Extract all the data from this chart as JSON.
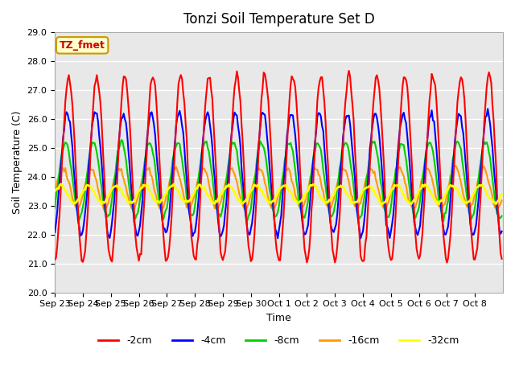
{
  "title": "Tonzi Soil Temperature Set D",
  "xlabel": "Time",
  "ylabel": "Soil Temperature (C)",
  "ylim": [
    20.0,
    29.0
  ],
  "yticks": [
    20.0,
    21.0,
    22.0,
    23.0,
    24.0,
    25.0,
    26.0,
    27.0,
    28.0,
    29.0
  ],
  "xtick_labels": [
    "Sep 23",
    "Sep 24",
    "Sep 25",
    "Sep 26",
    "Sep 27",
    "Sep 28",
    "Sep 29",
    "Sep 30",
    "Oct 1",
    "Oct 2",
    "Oct 3",
    "Oct 4",
    "Oct 5",
    "Oct 6",
    "Oct 7",
    "Oct 8"
  ],
  "annotation_text": "TZ_fmet",
  "annotation_color": "#cc0000",
  "annotation_bg": "#ffffcc",
  "annotation_border": "#cc9900",
  "colors": {
    "-2cm": "#ff0000",
    "-4cm": "#0000ff",
    "-8cm": "#00cc00",
    "-16cm": "#ff9900",
    "-32cm": "#ffff00"
  },
  "legend_labels": [
    "-2cm",
    "-4cm",
    "-8cm",
    "-16cm",
    "-32cm"
  ]
}
